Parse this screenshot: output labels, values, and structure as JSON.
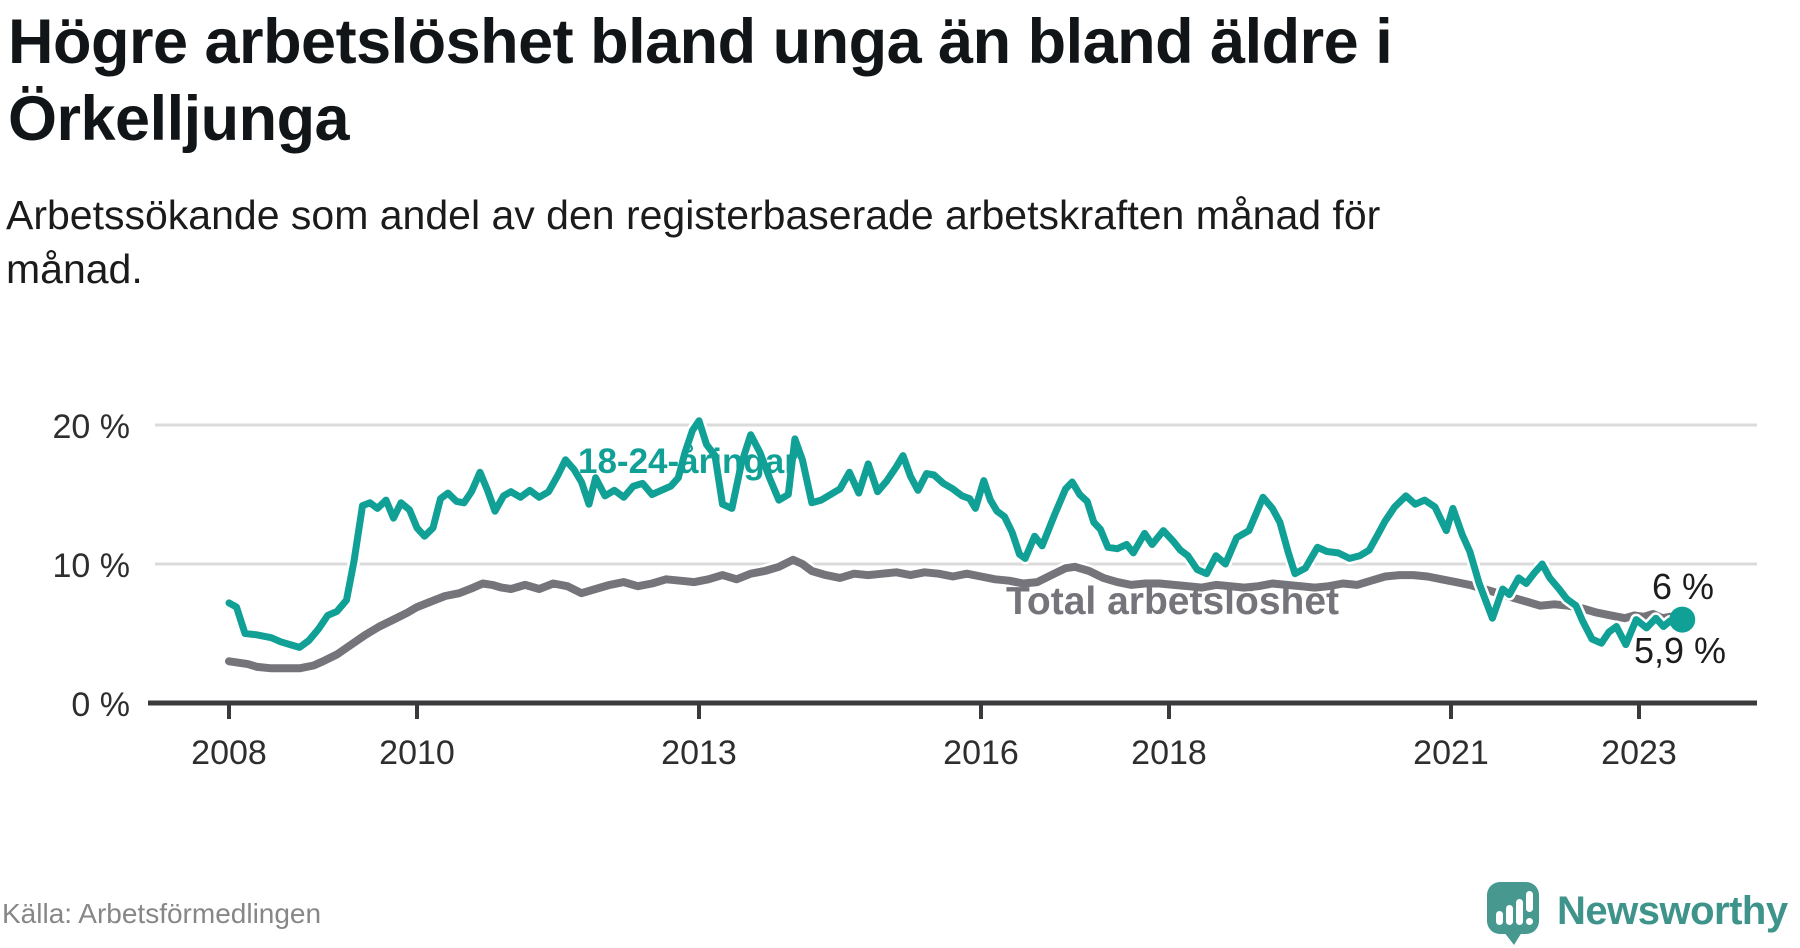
{
  "header": {
    "title": "Högre arbetslöshet bland unga än bland äldre i\nÖrkelljunga",
    "subtitle": "Arbetssökande som andel av den registerbaserade arbetskraften månad för\nmånad."
  },
  "footer": {
    "source": "Källa: Arbetsförmedlingen",
    "brand": "Newsworthy",
    "brand_icon": "newsworthy-speech-bubble-bar-chart-icon"
  },
  "colors": {
    "youth_series": "#10a095",
    "total_series": "#74747a",
    "gridline": "#dbdbdb",
    "axis": "#3a3a3c",
    "tick_text": "#2e2e30",
    "brand_teal": "#47998f"
  },
  "chart_data": {
    "type": "line",
    "title": "Högre arbetslöshet bland unga än bland äldre i Örkelljunga",
    "subtitle": "Arbetssökande som andel av den registerbaserade arbetskraften månad för månad.",
    "unit": "%",
    "grid": "horizontal-only",
    "x_axis": {
      "range_years": [
        2008,
        2023.5
      ],
      "ticks": [
        {
          "year": 2008,
          "label": "2008"
        },
        {
          "year": 2010,
          "label": "2010"
        },
        {
          "year": 2013,
          "label": "2013"
        },
        {
          "year": 2016,
          "label": "2016"
        },
        {
          "year": 2018,
          "label": "2018"
        },
        {
          "year": 2021,
          "label": "2021"
        },
        {
          "year": 2023,
          "label": "2023"
        }
      ]
    },
    "y_axis": {
      "range": [
        0,
        21.5
      ],
      "ticks": [
        {
          "value": 0,
          "label": "0 %"
        },
        {
          "value": 10,
          "label": "10 %"
        },
        {
          "value": 20,
          "label": "20 %"
        }
      ]
    },
    "annotations": {
      "youth_end": "6 %",
      "total_end": "5,9 %"
    },
    "series": [
      {
        "id": "total",
        "name": "Total arbetslöshet",
        "color": "#74747a",
        "stroke_width": 8,
        "end_dot": false,
        "points": [
          [
            2008.0,
            3.0
          ],
          [
            2008.1,
            2.9
          ],
          [
            2008.2,
            2.8
          ],
          [
            2008.3,
            2.6
          ],
          [
            2008.45,
            2.5
          ],
          [
            2008.6,
            2.5
          ],
          [
            2008.75,
            2.5
          ],
          [
            2008.9,
            2.7
          ],
          [
            2009.0,
            3.0
          ],
          [
            2009.15,
            3.5
          ],
          [
            2009.3,
            4.2
          ],
          [
            2009.45,
            4.9
          ],
          [
            2009.6,
            5.5
          ],
          [
            2009.75,
            6.0
          ],
          [
            2009.9,
            6.5
          ],
          [
            2010.0,
            6.9
          ],
          [
            2010.15,
            7.3
          ],
          [
            2010.3,
            7.7
          ],
          [
            2010.45,
            7.9
          ],
          [
            2010.6,
            8.3
          ],
          [
            2010.7,
            8.6
          ],
          [
            2010.8,
            8.5
          ],
          [
            2010.9,
            8.3
          ],
          [
            2011.0,
            8.2
          ],
          [
            2011.15,
            8.5
          ],
          [
            2011.3,
            8.2
          ],
          [
            2011.45,
            8.6
          ],
          [
            2011.6,
            8.4
          ],
          [
            2011.75,
            7.9
          ],
          [
            2011.9,
            8.2
          ],
          [
            2012.05,
            8.5
          ],
          [
            2012.2,
            8.7
          ],
          [
            2012.35,
            8.4
          ],
          [
            2012.5,
            8.6
          ],
          [
            2012.65,
            8.9
          ],
          [
            2012.8,
            8.8
          ],
          [
            2012.95,
            8.7
          ],
          [
            2013.1,
            8.9
          ],
          [
            2013.25,
            9.2
          ],
          [
            2013.4,
            8.9
          ],
          [
            2013.55,
            9.3
          ],
          [
            2013.7,
            9.5
          ],
          [
            2013.85,
            9.8
          ],
          [
            2014.0,
            10.3
          ],
          [
            2014.1,
            10.0
          ],
          [
            2014.2,
            9.5
          ],
          [
            2014.35,
            9.2
          ],
          [
            2014.5,
            9.0
          ],
          [
            2014.65,
            9.3
          ],
          [
            2014.8,
            9.2
          ],
          [
            2014.95,
            9.3
          ],
          [
            2015.1,
            9.4
          ],
          [
            2015.25,
            9.2
          ],
          [
            2015.4,
            9.4
          ],
          [
            2015.55,
            9.3
          ],
          [
            2015.7,
            9.1
          ],
          [
            2015.85,
            9.3
          ],
          [
            2016.0,
            9.1
          ],
          [
            2016.15,
            8.9
          ],
          [
            2016.3,
            8.8
          ],
          [
            2016.45,
            8.6
          ],
          [
            2016.6,
            8.7
          ],
          [
            2016.75,
            9.2
          ],
          [
            2016.9,
            9.7
          ],
          [
            2017.0,
            9.8
          ],
          [
            2017.15,
            9.5
          ],
          [
            2017.3,
            9.0
          ],
          [
            2017.45,
            8.7
          ],
          [
            2017.6,
            8.5
          ],
          [
            2017.75,
            8.6
          ],
          [
            2017.9,
            8.6
          ],
          [
            2018.05,
            8.5
          ],
          [
            2018.2,
            8.4
          ],
          [
            2018.35,
            8.3
          ],
          [
            2018.5,
            8.5
          ],
          [
            2018.65,
            8.4
          ],
          [
            2018.8,
            8.3
          ],
          [
            2018.95,
            8.4
          ],
          [
            2019.1,
            8.6
          ],
          [
            2019.25,
            8.5
          ],
          [
            2019.4,
            8.4
          ],
          [
            2019.55,
            8.3
          ],
          [
            2019.7,
            8.4
          ],
          [
            2019.85,
            8.6
          ],
          [
            2020.0,
            8.5
          ],
          [
            2020.15,
            8.8
          ],
          [
            2020.3,
            9.1
          ],
          [
            2020.45,
            9.2
          ],
          [
            2020.6,
            9.2
          ],
          [
            2020.75,
            9.1
          ],
          [
            2020.9,
            8.9
          ],
          [
            2021.05,
            8.7
          ],
          [
            2021.2,
            8.5
          ],
          [
            2021.35,
            8.2
          ],
          [
            2021.5,
            7.9
          ],
          [
            2021.65,
            7.6
          ],
          [
            2021.8,
            7.3
          ],
          [
            2021.95,
            7.0
          ],
          [
            2022.1,
            7.1
          ],
          [
            2022.25,
            7.0
          ],
          [
            2022.4,
            6.8
          ],
          [
            2022.55,
            6.5
          ],
          [
            2022.7,
            6.3
          ],
          [
            2022.85,
            6.1
          ],
          [
            2022.95,
            6.3
          ],
          [
            2023.05,
            6.2
          ],
          [
            2023.15,
            6.4
          ],
          [
            2023.25,
            6.1
          ],
          [
            2023.33,
            6.2
          ],
          [
            2023.4,
            6.0
          ],
          [
            2023.46,
            5.9
          ]
        ]
      },
      {
        "id": "youth",
        "name": "18-24-åringar",
        "color": "#10a095",
        "stroke_width": 7,
        "end_dot": true,
        "points": [
          [
            2008.0,
            7.2
          ],
          [
            2008.08,
            6.9
          ],
          [
            2008.17,
            5.0
          ],
          [
            2008.3,
            4.9
          ],
          [
            2008.45,
            4.7
          ],
          [
            2008.55,
            4.4
          ],
          [
            2008.65,
            4.2
          ],
          [
            2008.75,
            4.0
          ],
          [
            2008.85,
            4.5
          ],
          [
            2008.95,
            5.3
          ],
          [
            2009.05,
            6.3
          ],
          [
            2009.15,
            6.6
          ],
          [
            2009.25,
            7.4
          ],
          [
            2009.33,
            10.2
          ],
          [
            2009.42,
            14.2
          ],
          [
            2009.5,
            14.4
          ],
          [
            2009.58,
            14.0
          ],
          [
            2009.67,
            14.6
          ],
          [
            2009.75,
            13.3
          ],
          [
            2009.83,
            14.4
          ],
          [
            2009.92,
            13.9
          ],
          [
            2010.0,
            12.6
          ],
          [
            2010.08,
            12.0
          ],
          [
            2010.17,
            12.6
          ],
          [
            2010.25,
            14.7
          ],
          [
            2010.33,
            15.1
          ],
          [
            2010.42,
            14.5
          ],
          [
            2010.5,
            14.4
          ],
          [
            2010.58,
            15.2
          ],
          [
            2010.67,
            16.6
          ],
          [
            2010.75,
            15.3
          ],
          [
            2010.83,
            13.8
          ],
          [
            2010.92,
            14.9
          ],
          [
            2011.0,
            15.2
          ],
          [
            2011.1,
            14.8
          ],
          [
            2011.2,
            15.3
          ],
          [
            2011.3,
            14.8
          ],
          [
            2011.4,
            15.2
          ],
          [
            2011.5,
            16.4
          ],
          [
            2011.58,
            17.5
          ],
          [
            2011.67,
            16.8
          ],
          [
            2011.75,
            15.9
          ],
          [
            2011.83,
            14.3
          ],
          [
            2011.9,
            16.2
          ],
          [
            2012.0,
            14.9
          ],
          [
            2012.1,
            15.3
          ],
          [
            2012.2,
            14.8
          ],
          [
            2012.3,
            15.6
          ],
          [
            2012.4,
            15.8
          ],
          [
            2012.5,
            15.0
          ],
          [
            2012.6,
            15.3
          ],
          [
            2012.7,
            15.6
          ],
          [
            2012.78,
            16.2
          ],
          [
            2012.85,
            18.0
          ],
          [
            2012.93,
            19.6
          ],
          [
            2013.0,
            20.3
          ],
          [
            2013.08,
            18.6
          ],
          [
            2013.17,
            17.8
          ],
          [
            2013.25,
            14.3
          ],
          [
            2013.35,
            14.0
          ],
          [
            2013.45,
            17.2
          ],
          [
            2013.55,
            19.3
          ],
          [
            2013.65,
            18.0
          ],
          [
            2013.75,
            16.2
          ],
          [
            2013.85,
            14.6
          ],
          [
            2013.95,
            15.0
          ],
          [
            2014.02,
            19.0
          ],
          [
            2014.1,
            17.5
          ],
          [
            2014.2,
            14.4
          ],
          [
            2014.3,
            14.6
          ],
          [
            2014.4,
            15.0
          ],
          [
            2014.5,
            15.4
          ],
          [
            2014.6,
            16.6
          ],
          [
            2014.7,
            15.1
          ],
          [
            2014.8,
            17.2
          ],
          [
            2014.9,
            15.2
          ],
          [
            2015.0,
            16.0
          ],
          [
            2015.1,
            17.0
          ],
          [
            2015.17,
            17.8
          ],
          [
            2015.25,
            16.3
          ],
          [
            2015.33,
            15.3
          ],
          [
            2015.42,
            16.5
          ],
          [
            2015.5,
            16.4
          ],
          [
            2015.6,
            15.8
          ],
          [
            2015.7,
            15.4
          ],
          [
            2015.8,
            14.9
          ],
          [
            2015.88,
            14.7
          ],
          [
            2015.94,
            14.0
          ],
          [
            2016.03,
            16.0
          ],
          [
            2016.1,
            14.6
          ],
          [
            2016.17,
            13.8
          ],
          [
            2016.25,
            13.4
          ],
          [
            2016.33,
            12.3
          ],
          [
            2016.41,
            10.7
          ],
          [
            2016.47,
            10.4
          ],
          [
            2016.57,
            12.0
          ],
          [
            2016.65,
            11.3
          ],
          [
            2016.78,
            13.5
          ],
          [
            2016.9,
            15.4
          ],
          [
            2016.97,
            15.9
          ],
          [
            2017.05,
            15.0
          ],
          [
            2017.13,
            14.5
          ],
          [
            2017.2,
            13.0
          ],
          [
            2017.27,
            12.5
          ],
          [
            2017.35,
            11.2
          ],
          [
            2017.45,
            11.1
          ],
          [
            2017.55,
            11.4
          ],
          [
            2017.62,
            10.8
          ],
          [
            2017.74,
            12.2
          ],
          [
            2017.82,
            11.4
          ],
          [
            2017.94,
            12.4
          ],
          [
            2018.05,
            11.6
          ],
          [
            2018.12,
            11.0
          ],
          [
            2018.2,
            10.6
          ],
          [
            2018.3,
            9.6
          ],
          [
            2018.4,
            9.3
          ],
          [
            2018.5,
            10.6
          ],
          [
            2018.6,
            10.0
          ],
          [
            2018.72,
            11.9
          ],
          [
            2018.85,
            12.4
          ],
          [
            2019.0,
            14.8
          ],
          [
            2019.1,
            14.0
          ],
          [
            2019.18,
            13.0
          ],
          [
            2019.27,
            10.8
          ],
          [
            2019.34,
            9.3
          ],
          [
            2019.45,
            9.7
          ],
          [
            2019.58,
            11.2
          ],
          [
            2019.68,
            10.9
          ],
          [
            2019.8,
            10.8
          ],
          [
            2019.92,
            10.4
          ],
          [
            2020.03,
            10.6
          ],
          [
            2020.13,
            11.0
          ],
          [
            2020.22,
            12.1
          ],
          [
            2020.3,
            13.1
          ],
          [
            2020.4,
            14.1
          ],
          [
            2020.52,
            14.9
          ],
          [
            2020.62,
            14.3
          ],
          [
            2020.72,
            14.6
          ],
          [
            2020.83,
            14.1
          ],
          [
            2020.95,
            12.4
          ],
          [
            2021.02,
            14.0
          ],
          [
            2021.12,
            12.1
          ],
          [
            2021.2,
            10.9
          ],
          [
            2021.3,
            8.6
          ],
          [
            2021.44,
            6.1
          ],
          [
            2021.55,
            8.2
          ],
          [
            2021.62,
            7.8
          ],
          [
            2021.72,
            9.0
          ],
          [
            2021.8,
            8.6
          ],
          [
            2021.88,
            9.3
          ],
          [
            2021.97,
            10.0
          ],
          [
            2022.05,
            9.0
          ],
          [
            2022.15,
            8.2
          ],
          [
            2022.23,
            7.5
          ],
          [
            2022.33,
            7.0
          ],
          [
            2022.4,
            5.9
          ],
          [
            2022.5,
            4.6
          ],
          [
            2022.6,
            4.3
          ],
          [
            2022.68,
            5.1
          ],
          [
            2022.76,
            5.5
          ],
          [
            2022.86,
            4.2
          ],
          [
            2022.97,
            6.0
          ],
          [
            2023.08,
            5.4
          ],
          [
            2023.18,
            6.1
          ],
          [
            2023.26,
            5.5
          ],
          [
            2023.33,
            5.9
          ],
          [
            2023.4,
            5.6
          ],
          [
            2023.46,
            6.0
          ]
        ]
      }
    ]
  }
}
